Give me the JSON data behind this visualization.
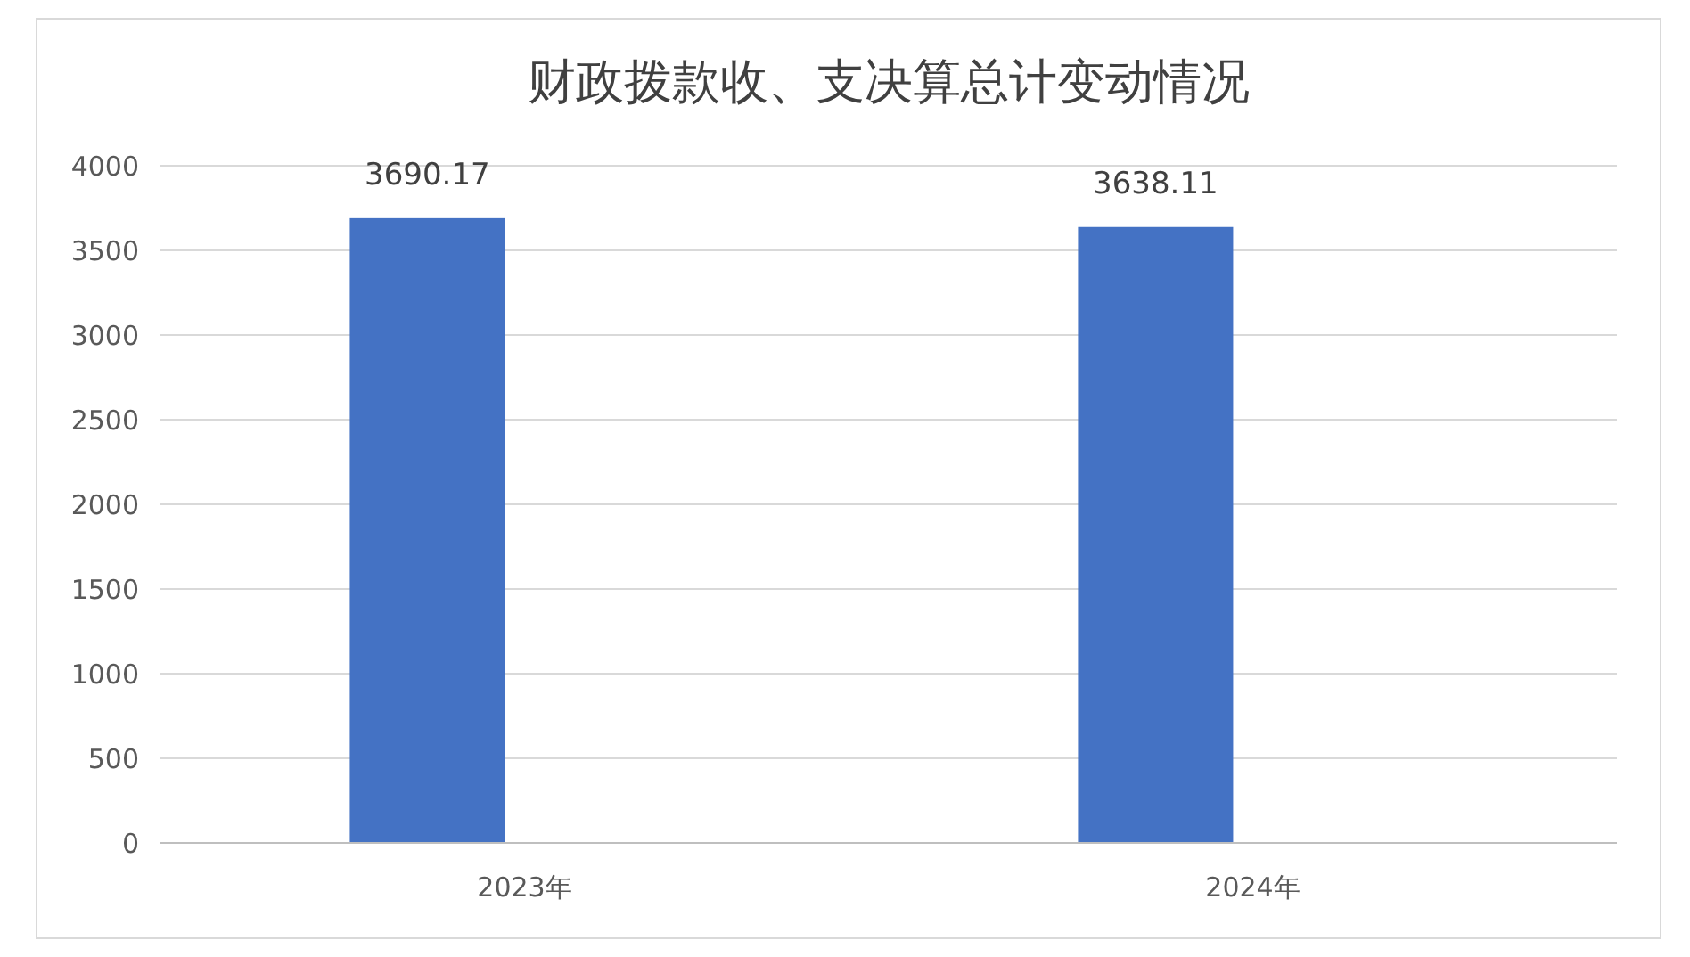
{
  "chart_data": {
    "type": "bar",
    "title": "财政拨款收、支决算总计变动情况",
    "categories": [
      "2023年",
      "2024年"
    ],
    "values": [
      3690.17,
      3638.11
    ],
    "color": "#4472c4",
    "ylim": [
      0,
      4000
    ],
    "yticks": [
      0,
      500,
      1000,
      1500,
      2000,
      2500,
      3000,
      3500,
      4000
    ],
    "grid": "y",
    "data_labels": true
  }
}
